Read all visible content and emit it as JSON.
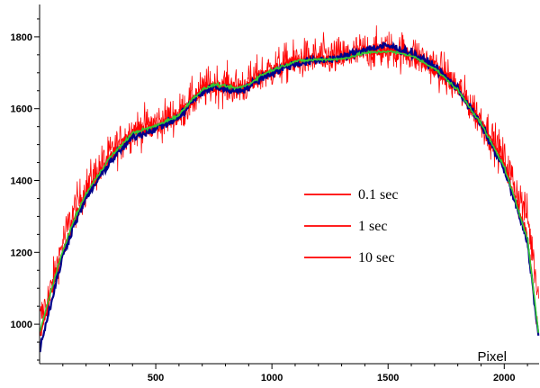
{
  "chart_data": {
    "type": "line",
    "xlabel": "Pixel",
    "ylabel": "",
    "xlim": [
      0,
      2150
    ],
    "ylim": [
      890,
      1890
    ],
    "x_ticks": [
      500,
      1000,
      1500,
      2000
    ],
    "y_ticks": [
      1000,
      1200,
      1400,
      1600,
      1800
    ],
    "grid": false,
    "legend_position": "center-right",
    "series": [
      {
        "name": "0.1 sec",
        "color": "#ff0000",
        "style": "noisy",
        "points": [
          [
            0,
            1010
          ],
          [
            50,
            1100
          ],
          [
            100,
            1230
          ],
          [
            150,
            1320
          ],
          [
            200,
            1380
          ],
          [
            250,
            1430
          ],
          [
            300,
            1470
          ],
          [
            400,
            1540
          ],
          [
            500,
            1560
          ],
          [
            600,
            1585
          ],
          [
            650,
            1620
          ],
          [
            700,
            1650
          ],
          [
            750,
            1670
          ],
          [
            800,
            1665
          ],
          [
            850,
            1660
          ],
          [
            900,
            1670
          ],
          [
            950,
            1695
          ],
          [
            1000,
            1710
          ],
          [
            1100,
            1735
          ],
          [
            1200,
            1745
          ],
          [
            1300,
            1745
          ],
          [
            1400,
            1760
          ],
          [
            1500,
            1765
          ],
          [
            1600,
            1755
          ],
          [
            1700,
            1720
          ],
          [
            1800,
            1660
          ],
          [
            1900,
            1570
          ],
          [
            2000,
            1460
          ],
          [
            2100,
            1300
          ],
          [
            2150,
            1070
          ]
        ]
      },
      {
        "name": "1 sec",
        "color": "#ff0000",
        "style": "smooth",
        "points": [
          [
            0,
            970
          ],
          [
            50,
            1090
          ],
          [
            100,
            1200
          ],
          [
            150,
            1290
          ],
          [
            200,
            1360
          ],
          [
            250,
            1410
          ],
          [
            300,
            1460
          ],
          [
            400,
            1530
          ],
          [
            500,
            1550
          ],
          [
            600,
            1580
          ],
          [
            650,
            1620
          ],
          [
            700,
            1650
          ],
          [
            750,
            1665
          ],
          [
            800,
            1660
          ],
          [
            850,
            1655
          ],
          [
            900,
            1665
          ],
          [
            950,
            1690
          ],
          [
            1000,
            1705
          ],
          [
            1100,
            1730
          ],
          [
            1200,
            1735
          ],
          [
            1300,
            1740
          ],
          [
            1400,
            1760
          ],
          [
            1500,
            1768
          ],
          [
            1600,
            1750
          ],
          [
            1700,
            1715
          ],
          [
            1800,
            1655
          ],
          [
            1900,
            1560
          ],
          [
            2000,
            1440
          ],
          [
            2100,
            1240
          ],
          [
            2150,
            955
          ]
        ]
      },
      {
        "name": "10 sec",
        "color": "#ff0000",
        "style": "smooth",
        "points": [
          [
            0,
            970
          ],
          [
            50,
            1090
          ],
          [
            100,
            1200
          ],
          [
            150,
            1290
          ],
          [
            200,
            1360
          ],
          [
            250,
            1410
          ],
          [
            300,
            1460
          ],
          [
            400,
            1530
          ],
          [
            500,
            1550
          ],
          [
            600,
            1580
          ],
          [
            650,
            1620
          ],
          [
            700,
            1650
          ],
          [
            750,
            1665
          ],
          [
            800,
            1660
          ],
          [
            850,
            1655
          ],
          [
            900,
            1665
          ],
          [
            950,
            1690
          ],
          [
            1000,
            1705
          ],
          [
            1100,
            1730
          ],
          [
            1200,
            1735
          ],
          [
            1300,
            1740
          ],
          [
            1400,
            1760
          ],
          [
            1500,
            1768
          ],
          [
            1600,
            1750
          ],
          [
            1700,
            1715
          ],
          [
            1800,
            1655
          ],
          [
            1900,
            1560
          ],
          [
            2000,
            1440
          ],
          [
            2100,
            1240
          ],
          [
            2150,
            955
          ]
        ]
      }
    ],
    "overlay_curves": [
      {
        "color": "#00008b",
        "points": [
          [
            0,
            930
          ],
          [
            50,
            1060
          ],
          [
            100,
            1190
          ],
          [
            150,
            1280
          ],
          [
            200,
            1350
          ],
          [
            250,
            1400
          ],
          [
            300,
            1450
          ],
          [
            400,
            1520
          ],
          [
            500,
            1545
          ],
          [
            600,
            1575
          ],
          [
            650,
            1615
          ],
          [
            700,
            1645
          ],
          [
            750,
            1660
          ],
          [
            800,
            1655
          ],
          [
            850,
            1650
          ],
          [
            900,
            1660
          ],
          [
            950,
            1685
          ],
          [
            1000,
            1700
          ],
          [
            1100,
            1725
          ],
          [
            1200,
            1735
          ],
          [
            1300,
            1742
          ],
          [
            1400,
            1765
          ],
          [
            1500,
            1775
          ],
          [
            1600,
            1755
          ],
          [
            1700,
            1718
          ],
          [
            1800,
            1655
          ],
          [
            1900,
            1555
          ],
          [
            2000,
            1430
          ],
          [
            2100,
            1230
          ],
          [
            2150,
            950
          ]
        ]
      },
      {
        "color": "#33cc33",
        "points": [
          [
            0,
            975
          ],
          [
            50,
            1095
          ],
          [
            100,
            1205
          ],
          [
            150,
            1293
          ],
          [
            200,
            1363
          ],
          [
            250,
            1413
          ],
          [
            300,
            1462
          ],
          [
            400,
            1532
          ],
          [
            500,
            1552
          ],
          [
            600,
            1582
          ],
          [
            650,
            1622
          ],
          [
            700,
            1652
          ],
          [
            750,
            1667
          ],
          [
            800,
            1662
          ],
          [
            850,
            1657
          ],
          [
            900,
            1667
          ],
          [
            950,
            1692
          ],
          [
            1000,
            1707
          ],
          [
            1100,
            1732
          ],
          [
            1200,
            1737
          ],
          [
            1300,
            1738
          ],
          [
            1400,
            1755
          ],
          [
            1500,
            1760
          ],
          [
            1600,
            1748
          ],
          [
            1700,
            1712
          ],
          [
            1800,
            1652
          ],
          [
            1900,
            1558
          ],
          [
            2000,
            1438
          ],
          [
            2100,
            1238
          ],
          [
            2150,
            960
          ]
        ]
      }
    ]
  }
}
